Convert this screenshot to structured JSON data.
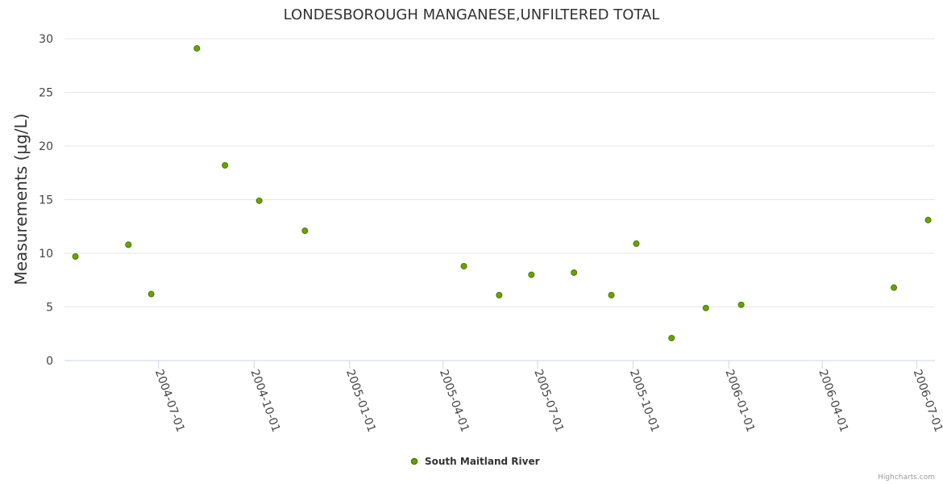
{
  "chart_data": {
    "type": "scatter",
    "title": "LONDESBOROUGH MANGANESE,UNFILTERED TOTAL",
    "xlabel": "",
    "ylabel": "Measurements (µg/L)",
    "ylim": [
      0,
      30
    ],
    "yticks": [
      "0",
      "5",
      "10",
      "15",
      "20",
      "25",
      "30"
    ],
    "xlim": [
      "2004-04-10",
      "2006-07-10"
    ],
    "xticks": [
      "2004-07-01",
      "2004-10-01",
      "2005-01-01",
      "2005-04-01",
      "2005-07-01",
      "2005-10-01",
      "2006-01-01",
      "2006-04-01",
      "2006-07-01"
    ],
    "series": [
      {
        "name": "South Maitland River",
        "color": "#6aa300",
        "points": [
          {
            "x": "2004-04-12",
            "y": 9.7
          },
          {
            "x": "2004-06-02",
            "y": 10.8
          },
          {
            "x": "2004-06-24",
            "y": 6.2
          },
          {
            "x": "2004-08-07",
            "y": 29.1
          },
          {
            "x": "2004-09-03",
            "y": 18.2
          },
          {
            "x": "2004-10-06",
            "y": 14.9
          },
          {
            "x": "2004-11-19",
            "y": 12.1
          },
          {
            "x": "2005-04-21",
            "y": 8.8
          },
          {
            "x": "2005-05-25",
            "y": 6.1
          },
          {
            "x": "2005-06-25",
            "y": 8.0
          },
          {
            "x": "2005-08-05",
            "y": 8.2
          },
          {
            "x": "2005-09-10",
            "y": 6.1
          },
          {
            "x": "2005-10-04",
            "y": 10.9
          },
          {
            "x": "2005-11-07",
            "y": 2.1
          },
          {
            "x": "2005-12-10",
            "y": 4.9
          },
          {
            "x": "2006-01-13",
            "y": 5.2
          },
          {
            "x": "2006-06-09",
            "y": 6.8
          },
          {
            "x": "2006-07-12",
            "y": 13.1
          }
        ]
      }
    ],
    "legend": "bottom-center",
    "grid": true
  },
  "credits": "Highcharts.com"
}
